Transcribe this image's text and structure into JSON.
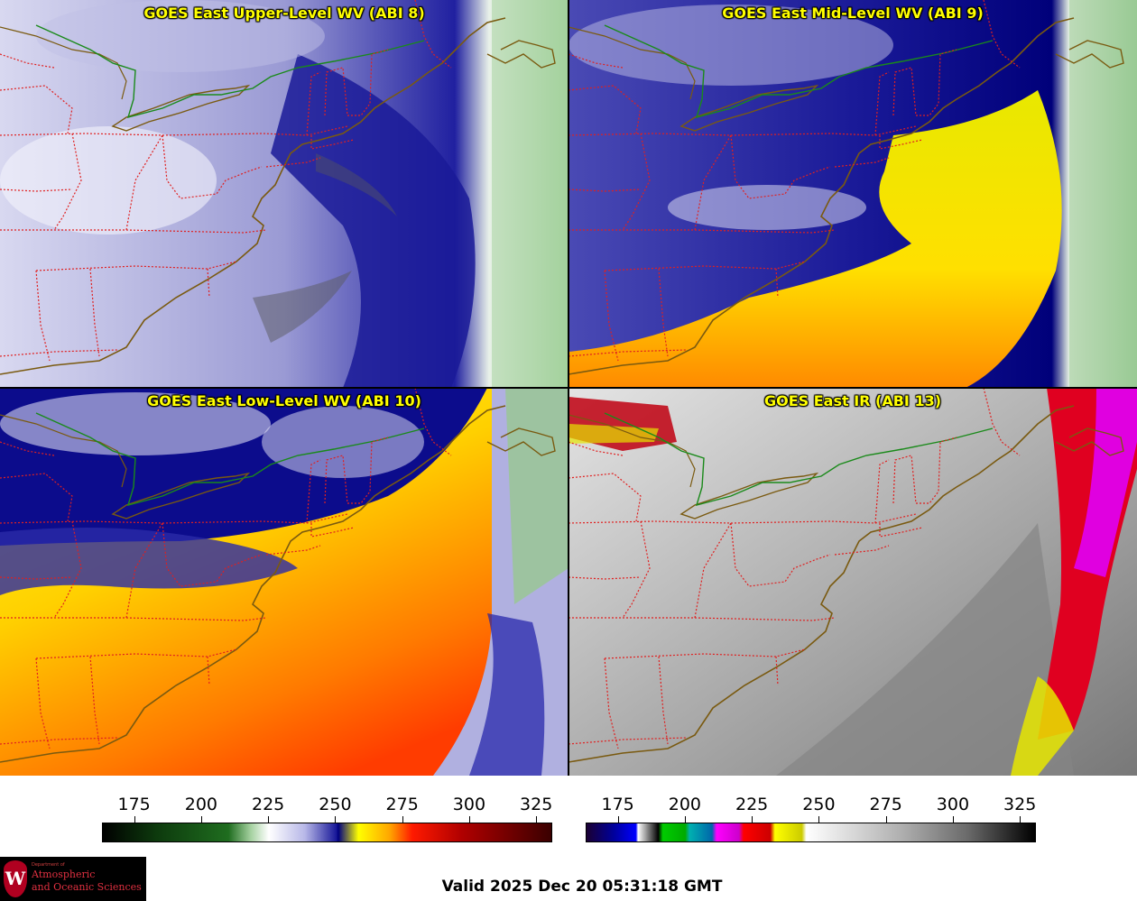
{
  "panels": [
    {
      "id": "abi8",
      "title": "GOES East Upper-Level WV (ABI 8)"
    },
    {
      "id": "abi9",
      "title": "GOES East Mid-Level WV (ABI 9)"
    },
    {
      "id": "abi10",
      "title": "GOES East Low-Level WV (ABI 10)"
    },
    {
      "id": "abi13",
      "title": "GOES East IR (ABI 13)"
    }
  ],
  "colorbars": {
    "wv": {
      "ticks": [
        "175",
        "200",
        "225",
        "250",
        "275",
        "300",
        "325"
      ],
      "min": 163,
      "max": 331
    },
    "ir": {
      "ticks": [
        "175",
        "200",
        "225",
        "250",
        "275",
        "300",
        "325"
      ],
      "min": 163,
      "max": 331
    }
  },
  "logo": {
    "small_text": "Department of",
    "line1": "Atmospheric",
    "line2": "and Oceanic Sciences",
    "seal_letter": "W"
  },
  "valid_time": "Valid 2025 Dec 20 05:31:18 GMT",
  "colors": {
    "title": "#ffff00",
    "state_borders": "#e02020",
    "coastline": "#7a5a10",
    "intl_border": "#1a8a1a"
  }
}
